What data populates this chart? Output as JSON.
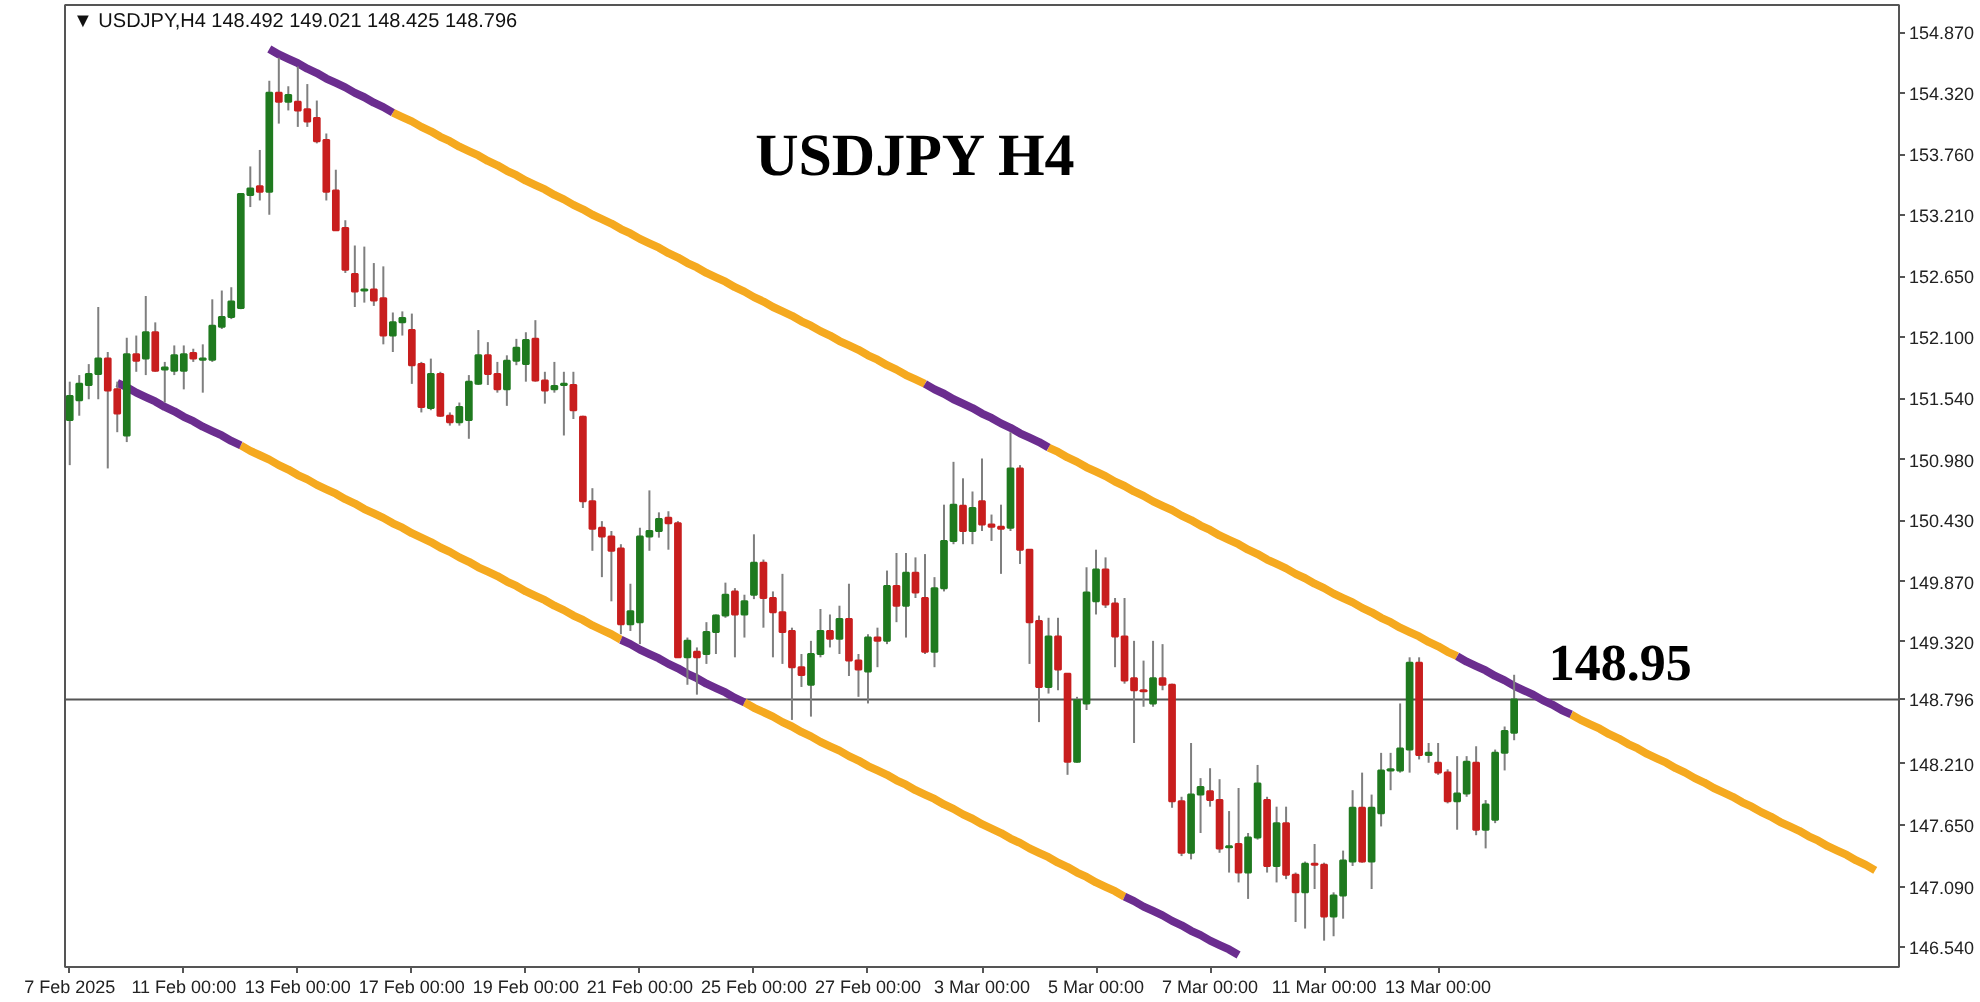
{
  "chart_data": {
    "type": "candlestick",
    "title": "USDJPY H4",
    "annotations": [
      "▼ USDJPY,H4  148.492 149.021 148.425 148.796",
      "148.95"
    ],
    "categories": [
      "7 Feb 2025",
      null,
      null,
      null,
      null,
      null,
      null,
      null,
      null,
      null,
      null,
      null,
      "11 Feb 00:00",
      null,
      null,
      null,
      null,
      null,
      null,
      null,
      null,
      null,
      null,
      null,
      "13 Feb 00:00",
      null,
      null,
      null,
      null,
      null,
      null,
      null,
      null,
      null,
      null,
      null,
      "17 Feb 00:00",
      null,
      null,
      null,
      null,
      null,
      null,
      null,
      null,
      null,
      null,
      null,
      "19 Feb 00:00",
      null,
      null,
      null,
      null,
      null,
      null,
      null,
      null,
      null,
      null,
      null,
      "21 Feb 00:00",
      null,
      null,
      null,
      null,
      null,
      null,
      null,
      null,
      null,
      null,
      null,
      "25 Feb 00:00",
      null,
      null,
      null,
      null,
      null,
      null,
      null,
      null,
      null,
      null,
      null,
      "27 Feb 00:00",
      null,
      null,
      null,
      null,
      null,
      null,
      null,
      null,
      null,
      null,
      null,
      "3 Mar 00:00",
      null,
      null,
      null,
      null,
      null,
      null,
      null,
      null,
      null,
      null,
      null,
      "5 Mar 00:00",
      null,
      null,
      null,
      null,
      null,
      null,
      null,
      null,
      null,
      null,
      null,
      "7 Mar 00:00",
      null,
      null,
      null,
      null,
      null,
      null,
      null,
      null,
      null,
      null,
      null,
      "11 Mar 00:00",
      null,
      null,
      null,
      null,
      null,
      null,
      null,
      null,
      null,
      null,
      null,
      "13 Mar 00:00",
      null,
      null,
      null,
      null,
      null,
      null,
      null,
      null,
      null,
      null,
      null,
      null,
      null,
      null,
      null,
      null,
      null,
      null,
      null,
      null,
      null,
      null,
      null,
      null,
      null,
      null,
      null,
      null,
      null,
      null,
      null,
      null,
      null,
      null,
      null,
      null,
      null,
      null,
      null,
      null,
      null,
      null,
      null,
      null,
      null,
      null,
      null,
      null
    ],
    "ohlc": [
      [
        151.34,
        151.69,
        150.93,
        151.56
      ],
      [
        151.52,
        151.75,
        151.38,
        151.67
      ],
      [
        151.66,
        151.85,
        151.53,
        151.76
      ],
      [
        151.76,
        152.37,
        151.53,
        151.9
      ],
      [
        151.9,
        151.96,
        150.9,
        151.61
      ],
      [
        151.62,
        151.69,
        151.23,
        151.4
      ],
      [
        151.2,
        152.09,
        151.14,
        151.94
      ],
      [
        151.94,
        152.11,
        151.78,
        151.88
      ],
      [
        151.9,
        152.47,
        151.75,
        152.14
      ],
      [
        152.14,
        152.23,
        151.78,
        151.79
      ],
      [
        151.8,
        151.87,
        151.5,
        151.82
      ],
      [
        151.79,
        152.02,
        151.75,
        151.93
      ],
      [
        151.79,
        152.02,
        151.62,
        151.94
      ],
      [
        151.95,
        151.99,
        151.87,
        151.9
      ],
      [
        151.89,
        152.03,
        151.59,
        151.9
      ],
      [
        151.89,
        152.44,
        151.87,
        152.2
      ],
      [
        152.19,
        152.52,
        152.17,
        152.28
      ],
      [
        152.28,
        152.55,
        152.26,
        152.42
      ],
      [
        152.36,
        153.4,
        152.35,
        153.4
      ],
      [
        153.39,
        153.65,
        153.28,
        153.45
      ],
      [
        153.47,
        153.8,
        153.34,
        153.42
      ],
      [
        153.42,
        154.43,
        153.21,
        154.32
      ],
      [
        154.32,
        154.64,
        154.04,
        154.24
      ],
      [
        154.24,
        154.38,
        154.16,
        154.3
      ],
      [
        154.24,
        154.56,
        154.01,
        154.16
      ],
      [
        154.17,
        154.4,
        154.01,
        154.06
      ],
      [
        154.09,
        154.25,
        153.86,
        153.88
      ],
      [
        153.89,
        153.95,
        153.34,
        153.42
      ],
      [
        153.43,
        153.62,
        153.07,
        153.07
      ],
      [
        153.09,
        153.16,
        152.68,
        152.71
      ],
      [
        152.67,
        152.93,
        152.37,
        152.51
      ],
      [
        152.52,
        152.92,
        152.41,
        152.53
      ],
      [
        152.53,
        152.77,
        152.38,
        152.43
      ],
      [
        152.45,
        152.74,
        152.03,
        152.11
      ],
      [
        152.11,
        152.32,
        151.96,
        152.23
      ],
      [
        152.23,
        152.33,
        152.11,
        152.27
      ],
      [
        152.16,
        152.31,
        151.67,
        151.84
      ],
      [
        151.85,
        151.87,
        151.41,
        151.46
      ],
      [
        151.45,
        151.9,
        151.43,
        151.76
      ],
      [
        151.76,
        151.78,
        151.37,
        151.38
      ],
      [
        151.38,
        151.41,
        151.29,
        151.32
      ],
      [
        151.32,
        151.5,
        151.29,
        151.46
      ],
      [
        151.34,
        151.75,
        151.17,
        151.69
      ],
      [
        151.67,
        152.16,
        151.66,
        151.93
      ],
      [
        151.93,
        152.05,
        151.66,
        151.76
      ],
      [
        151.76,
        151.87,
        151.59,
        151.62
      ],
      [
        151.62,
        151.93,
        151.47,
        151.88
      ],
      [
        151.88,
        152.08,
        151.84,
        152.0
      ],
      [
        151.85,
        152.14,
        151.69,
        152.07
      ],
      [
        152.08,
        152.25,
        151.69,
        151.7
      ],
      [
        151.7,
        151.78,
        151.49,
        151.61
      ],
      [
        151.62,
        151.87,
        151.59,
        151.65
      ],
      [
        151.66,
        151.78,
        151.2,
        151.67
      ],
      [
        151.66,
        151.78,
        151.35,
        151.43
      ],
      [
        151.37,
        151.38,
        150.54,
        150.6
      ],
      [
        150.6,
        150.72,
        150.15,
        150.35
      ],
      [
        150.36,
        150.42,
        149.91,
        150.28
      ],
      [
        150.28,
        150.33,
        149.69,
        150.15
      ],
      [
        150.17,
        150.21,
        149.39,
        149.48
      ],
      [
        149.48,
        149.85,
        149.42,
        149.6
      ],
      [
        149.5,
        150.36,
        149.3,
        150.28
      ],
      [
        150.28,
        150.7,
        150.15,
        150.33
      ],
      [
        150.33,
        150.5,
        150.27,
        150.44
      ],
      [
        150.45,
        150.51,
        150.16,
        150.4
      ],
      [
        150.4,
        150.42,
        149.18,
        149.18
      ],
      [
        149.18,
        149.36,
        148.93,
        149.33
      ],
      [
        149.23,
        149.27,
        148.84,
        149.18
      ],
      [
        149.21,
        149.5,
        149.12,
        149.41
      ],
      [
        149.41,
        149.57,
        149.21,
        149.56
      ],
      [
        149.56,
        149.86,
        149.54,
        149.75
      ],
      [
        149.78,
        149.81,
        149.18,
        149.57
      ],
      [
        149.57,
        149.75,
        149.36,
        149.69
      ],
      [
        149.75,
        150.3,
        149.71,
        150.04
      ],
      [
        150.04,
        150.07,
        149.45,
        149.72
      ],
      [
        149.72,
        149.78,
        149.18,
        149.59
      ],
      [
        149.59,
        149.94,
        149.12,
        149.41
      ],
      [
        149.42,
        149.45,
        148.61,
        149.09
      ],
      [
        149.09,
        149.21,
        148.91,
        149.02
      ],
      [
        148.93,
        149.33,
        148.64,
        149.21
      ],
      [
        149.21,
        149.62,
        149.18,
        149.42
      ],
      [
        149.42,
        149.57,
        149.27,
        149.35
      ],
      [
        149.35,
        149.65,
        149.21,
        149.53
      ],
      [
        149.53,
        149.85,
        149.01,
        149.15
      ],
      [
        149.15,
        149.21,
        148.82,
        149.07
      ],
      [
        149.05,
        149.39,
        148.76,
        149.36
      ],
      [
        149.36,
        149.45,
        149.09,
        149.33
      ],
      [
        149.33,
        149.97,
        149.3,
        149.83
      ],
      [
        149.83,
        150.13,
        149.5,
        149.65
      ],
      [
        149.65,
        150.13,
        149.36,
        149.95
      ],
      [
        149.95,
        150.09,
        149.72,
        149.77
      ],
      [
        149.72,
        150.12,
        149.21,
        149.23
      ],
      [
        149.23,
        149.91,
        149.09,
        149.81
      ],
      [
        149.81,
        150.57,
        149.78,
        150.24
      ],
      [
        150.24,
        150.96,
        150.21,
        150.57
      ],
      [
        150.56,
        150.81,
        150.21,
        150.33
      ],
      [
        150.33,
        150.69,
        150.21,
        150.54
      ],
      [
        150.6,
        150.99,
        150.33,
        150.39
      ],
      [
        150.39,
        150.48,
        150.24,
        150.37
      ],
      [
        150.37,
        150.57,
        149.94,
        150.35
      ],
      [
        150.36,
        151.23,
        150.33,
        150.9
      ],
      [
        150.9,
        150.93,
        150.03,
        150.16
      ],
      [
        150.16,
        150.16,
        149.12,
        149.5
      ],
      [
        149.51,
        149.56,
        148.59,
        148.91
      ],
      [
        148.91,
        149.54,
        148.85,
        149.37
      ],
      [
        149.37,
        149.54,
        148.88,
        149.07
      ],
      [
        149.03,
        149.03,
        148.11,
        148.23
      ],
      [
        148.23,
        148.82,
        148.22,
        148.79
      ],
      [
        148.76,
        150.0,
        148.7,
        149.77
      ],
      [
        149.69,
        150.16,
        149.57,
        149.98
      ],
      [
        149.98,
        150.09,
        149.63,
        149.66
      ],
      [
        149.67,
        149.72,
        149.09,
        149.37
      ],
      [
        149.37,
        149.72,
        148.94,
        148.97
      ],
      [
        148.99,
        149.33,
        148.4,
        148.88
      ],
      [
        148.88,
        149.15,
        148.73,
        148.87
      ],
      [
        148.76,
        149.33,
        148.73,
        148.99
      ],
      [
        148.99,
        149.3,
        148.88,
        148.93
      ],
      [
        148.93,
        148.94,
        147.81,
        147.87
      ],
      [
        147.87,
        147.91,
        147.37,
        147.4
      ],
      [
        147.4,
        148.4,
        147.34,
        147.93
      ],
      [
        147.93,
        148.08,
        147.58,
        148.0
      ],
      [
        147.96,
        148.17,
        147.82,
        147.88
      ],
      [
        147.88,
        148.07,
        147.4,
        147.44
      ],
      [
        147.45,
        147.78,
        147.22,
        147.46
      ],
      [
        147.48,
        147.99,
        147.13,
        147.22
      ],
      [
        147.22,
        147.58,
        146.98,
        147.54
      ],
      [
        147.54,
        148.2,
        147.52,
        148.03
      ],
      [
        147.88,
        147.91,
        147.22,
        147.28
      ],
      [
        147.28,
        147.82,
        147.13,
        147.67
      ],
      [
        147.67,
        147.82,
        147.16,
        147.2
      ],
      [
        147.2,
        147.22,
        146.77,
        147.04
      ],
      [
        147.04,
        147.32,
        146.71,
        147.3
      ],
      [
        147.3,
        147.48,
        147.07,
        147.29
      ],
      [
        147.29,
        147.31,
        146.6,
        146.82
      ],
      [
        146.82,
        147.04,
        146.64,
        147.01
      ],
      [
        147.01,
        147.42,
        146.8,
        147.33
      ],
      [
        147.32,
        147.97,
        147.28,
        147.81
      ],
      [
        147.81,
        148.13,
        147.31,
        147.32
      ],
      [
        147.32,
        147.93,
        147.07,
        147.81
      ],
      [
        147.76,
        148.31,
        147.64,
        148.15
      ],
      [
        148.15,
        148.31,
        147.97,
        148.16
      ],
      [
        148.15,
        148.76,
        148.13,
        148.35
      ],
      [
        148.34,
        149.18,
        148.13,
        149.13
      ],
      [
        149.13,
        149.18,
        148.25,
        148.29
      ],
      [
        148.29,
        148.4,
        148.22,
        148.31
      ],
      [
        148.22,
        148.4,
        148.11,
        148.13
      ],
      [
        148.13,
        148.16,
        147.85,
        147.87
      ],
      [
        147.87,
        148.28,
        147.61,
        147.94
      ],
      [
        147.94,
        148.28,
        147.91,
        148.23
      ],
      [
        148.22,
        148.37,
        147.56,
        147.61
      ],
      [
        147.61,
        147.88,
        147.44,
        147.84
      ],
      [
        147.7,
        148.34,
        147.67,
        148.31
      ],
      [
        148.31,
        148.55,
        148.15,
        148.51
      ],
      [
        148.492,
        149.021,
        148.425,
        148.796
      ],
      null,
      null,
      null,
      null,
      null,
      null,
      null,
      null,
      null,
      null,
      null,
      null,
      null,
      null,
      null,
      null,
      null,
      null,
      null,
      null,
      null,
      null,
      null,
      null,
      null,
      null,
      null,
      null,
      null,
      null,
      null,
      null,
      null,
      null,
      null,
      null,
      null,
      null,
      null,
      null
    ],
    "colors": [
      "#1f7a1f",
      "#1f7a1f",
      "#1f7a1f",
      "#1f7a1f",
      "#c81e1e",
      "#c81e1e",
      "#1f7a1f",
      "#c81e1e",
      "#1f7a1f",
      "#c81e1e",
      "#1f7a1f",
      "#1f7a1f",
      "#1f7a1f",
      "#c81e1e",
      "#1f7a1f",
      "#1f7a1f",
      "#1f7a1f",
      "#1f7a1f",
      "#1f7a1f",
      "#1f7a1f",
      "#c81e1e",
      "#1f7a1f",
      "#c81e1e",
      "#1f7a1f",
      "#c81e1e",
      "#c81e1e",
      "#c81e1e",
      "#c81e1e",
      "#c81e1e",
      "#c81e1e",
      "#c81e1e",
      "#1f7a1f",
      "#c81e1e",
      "#c81e1e",
      "#1f7a1f",
      "#1f7a1f",
      "#c81e1e",
      "#c81e1e",
      "#1f7a1f",
      "#c81e1e",
      "#c81e1e",
      "#1f7a1f",
      "#1f7a1f",
      "#1f7a1f",
      "#c81e1e",
      "#c81e1e",
      "#1f7a1f",
      "#1f7a1f",
      "#1f7a1f",
      "#c81e1e",
      "#c81e1e",
      "#1f7a1f",
      "#1f7a1f",
      "#c81e1e",
      "#c81e1e",
      "#c81e1e",
      "#c81e1e",
      "#c81e1e",
      "#c81e1e",
      "#1f7a1f",
      "#1f7a1f",
      "#1f7a1f",
      "#1f7a1f",
      "#c81e1e",
      "#c81e1e",
      "#1f7a1f",
      "#c81e1e",
      "#1f7a1f",
      "#1f7a1f",
      "#1f7a1f",
      "#c81e1e",
      "#1f7a1f",
      "#1f7a1f",
      "#c81e1e",
      "#c81e1e",
      "#c81e1e",
      "#c81e1e",
      "#c81e1e",
      "#1f7a1f",
      "#1f7a1f",
      "#c81e1e",
      "#1f7a1f",
      "#c81e1e",
      "#c81e1e",
      "#1f7a1f",
      "#c81e1e",
      "#1f7a1f",
      "#c81e1e",
      "#1f7a1f",
      "#c81e1e",
      "#c81e1e",
      "#1f7a1f",
      "#1f7a1f",
      "#1f7a1f",
      "#c81e1e",
      "#1f7a1f",
      "#c81e1e",
      "#c81e1e",
      "#c81e1e",
      "#1f7a1f",
      "#c81e1e",
      "#c81e1e",
      "#c81e1e",
      "#1f7a1f",
      "#c81e1e",
      "#c81e1e",
      "#1f7a1f",
      "#1f7a1f",
      "#1f7a1f",
      "#c81e1e",
      "#c81e1e",
      "#c81e1e",
      "#c81e1e",
      "#c81e1e",
      "#1f7a1f",
      "#c81e1e",
      "#c81e1e",
      "#c81e1e",
      "#1f7a1f",
      "#1f7a1f",
      "#c81e1e",
      "#c81e1e",
      "#1f7a1f",
      "#c81e1e",
      "#1f7a1f",
      "#1f7a1f",
      "#c81e1e",
      "#1f7a1f",
      "#c81e1e",
      "#c81e1e",
      "#1f7a1f",
      "#c81e1e",
      "#c81e1e",
      "#1f7a1f",
      "#1f7a1f",
      "#1f7a1f",
      "#c81e1e",
      "#1f7a1f",
      "#1f7a1f",
      "#1f7a1f",
      "#1f7a1f",
      "#1f7a1f",
      "#c81e1e",
      "#1f7a1f",
      "#c81e1e",
      "#c81e1e",
      "#1f7a1f",
      "#1f7a1f",
      "#c81e1e",
      "#1f7a1f",
      "#1f7a1f",
      "#1f7a1f",
      "#1f7a1f",
      null,
      null,
      null,
      null,
      null,
      null,
      null,
      null,
      null,
      null,
      null,
      null,
      null,
      null,
      null,
      null,
      null,
      null,
      null,
      null,
      null,
      null,
      null,
      null,
      null,
      null,
      null,
      null,
      null,
      null,
      null,
      null,
      null,
      null,
      null,
      null,
      null,
      null,
      null,
      null
    ],
    "ylim": [
      146.36,
      155.12
    ],
    "yticks": [
      {
        "value": 154.87,
        "label": "154.870"
      },
      {
        "value": 154.32,
        "label": "154.320"
      },
      {
        "value": 153.76,
        "label": "153.760"
      },
      {
        "value": 153.21,
        "label": "153.210"
      },
      {
        "value": 152.65,
        "label": "152.650"
      },
      {
        "value": 152.1,
        "label": "152.100"
      },
      {
        "value": 151.54,
        "label": "151.540"
      },
      {
        "value": 150.98,
        "label": "150.980"
      },
      {
        "value": 150.43,
        "label": "150.430"
      },
      {
        "value": 149.87,
        "label": "149.870"
      },
      {
        "value": 149.32,
        "label": "149.320"
      },
      {
        "value": 148.21,
        "label": "148.210"
      },
      {
        "value": 147.65,
        "label": "147.650"
      },
      {
        "value": 147.09,
        "label": "147.090"
      },
      {
        "value": 146.54,
        "label": "146.540"
      }
    ],
    "series": [
      {
        "type": "line",
        "color": "#f5a91f",
        "values": [
          null,
          null,
          null,
          null,
          null,
          null,
          null,
          null,
          null,
          null,
          null,
          null,
          null,
          null,
          null,
          null,
          null,
          null,
          null,
          null,
          null,
          null,
          null,
          null,
          null,
          null,
          null,
          null,
          null,
          null,
          null,
          null,
          null,
          null,
          154.14,
          154.1,
          154.06,
          154.01,
          153.97,
          153.92,
          153.88,
          153.83,
          153.79,
          153.75,
          153.7,
          153.66,
          153.61,
          153.57,
          153.52,
          153.48,
          153.44,
          153.39,
          153.35,
          153.3,
          153.26,
          153.21,
          153.17,
          153.13,
          153.08,
          153.04,
          152.99,
          152.95,
          152.91,
          152.86,
          152.82,
          152.77,
          152.73,
          152.68,
          152.64,
          152.6,
          152.55,
          152.51,
          152.46,
          152.42,
          152.37,
          152.33,
          152.29,
          152.24,
          152.2,
          152.15,
          152.11,
          152.06,
          152.02,
          151.98,
          151.93,
          151.89,
          151.84,
          151.8,
          151.75,
          151.71,
          151.67,
          null,
          null,
          null,
          null,
          null,
          null,
          null,
          null,
          null,
          null,
          null,
          null,
          151.09,
          151.05,
          151.0,
          150.96,
          150.91,
          150.87,
          150.83,
          150.78,
          150.74,
          150.69,
          150.65,
          150.6,
          150.56,
          150.52,
          150.47,
          150.43,
          150.38,
          150.34,
          150.29,
          150.25,
          150.21,
          150.16,
          150.12,
          150.07,
          150.03,
          149.99,
          149.94,
          149.9,
          149.85,
          149.81,
          149.76,
          149.72,
          149.68,
          149.63,
          149.59,
          149.54,
          149.5,
          149.45,
          149.41,
          149.37,
          149.32,
          149.28,
          149.23,
          149.19,
          null,
          null,
          null,
          null,
          null,
          null,
          null,
          null,
          null,
          null,
          null,
          148.66,
          148.61,
          148.57,
          148.53,
          148.48,
          148.44,
          148.39,
          148.35,
          148.3,
          148.26,
          148.22,
          148.17,
          148.13,
          148.08,
          148.04,
          147.99,
          147.95,
          147.91,
          147.86,
          147.82,
          147.77,
          147.73,
          147.68,
          147.64,
          147.6,
          147.55,
          147.51,
          147.46,
          147.42,
          147.38,
          147.33,
          147.29,
          147.24,
          null,
          null
        ]
      },
      {
        "type": "line",
        "color": "#f5a91f",
        "values": [
          null,
          null,
          null,
          null,
          null,
          null,
          null,
          null,
          null,
          null,
          null,
          null,
          null,
          null,
          null,
          null,
          null,
          null,
          151.11,
          151.06,
          151.02,
          150.98,
          150.93,
          150.89,
          150.84,
          150.8,
          150.75,
          150.71,
          150.67,
          150.62,
          150.58,
          150.53,
          150.49,
          150.45,
          150.4,
          150.36,
          150.31,
          150.27,
          150.23,
          150.18,
          150.14,
          150.09,
          150.05,
          150.0,
          149.96,
          149.92,
          149.87,
          149.83,
          149.78,
          149.74,
          149.7,
          149.65,
          149.61,
          149.56,
          149.52,
          149.47,
          149.43,
          149.39,
          149.34,
          null,
          null,
          null,
          null,
          null,
          null,
          null,
          null,
          null,
          null,
          null,
          null,
          148.77,
          148.72,
          148.68,
          148.64,
          148.59,
          148.55,
          148.5,
          148.46,
          148.41,
          148.37,
          148.33,
          148.28,
          148.24,
          148.19,
          148.15,
          148.11,
          148.06,
          148.02,
          147.97,
          147.93,
          147.89,
          147.84,
          147.8,
          147.75,
          147.71,
          147.66,
          147.62,
          147.58,
          147.53,
          147.49,
          147.44,
          147.4,
          147.36,
          147.31,
          147.27,
          147.22,
          147.18,
          147.13,
          147.09,
          147.05,
          147.0,
          null,
          null,
          null,
          null,
          null,
          null,
          null,
          null,
          null,
          null,
          null,
          null,
          null,
          null,
          null,
          null,
          null,
          null,
          null,
          null,
          null,
          null,
          null,
          null,
          null,
          null,
          null,
          null,
          null,
          null,
          null,
          null,
          null,
          null,
          null,
          null,
          null,
          null,
          null,
          null,
          null,
          null,
          null,
          null,
          null,
          null,
          null,
          null,
          null,
          null,
          null,
          null,
          null,
          null,
          null,
          null,
          null,
          null,
          null,
          null,
          null,
          null,
          null,
          null,
          null,
          null,
          null,
          null,
          null,
          null,
          null,
          null,
          null,
          null,
          null,
          null,
          null,
          null,
          null,
          null,
          null
        ]
      },
      {
        "type": "line",
        "color": "#6b2d8f",
        "values": [
          null,
          null,
          null,
          null,
          null,
          151.68,
          151.64,
          151.59,
          151.55,
          151.51,
          151.46,
          151.42,
          151.37,
          151.33,
          151.28,
          151.24,
          151.2,
          151.15,
          151.11,
          null,
          null,
          154.72,
          154.67,
          154.63,
          154.59,
          154.54,
          154.5,
          154.45,
          154.41,
          154.37,
          154.32,
          154.28,
          154.23,
          154.19,
          154.14,
          null,
          null,
          null,
          null,
          null,
          null,
          null,
          null,
          null,
          null,
          null,
          null,
          null,
          null,
          null,
          null,
          null,
          null,
          null,
          null,
          null,
          null,
          null,
          149.34,
          149.3,
          149.25,
          149.21,
          149.17,
          149.12,
          149.08,
          149.03,
          148.99,
          148.94,
          148.9,
          148.86,
          148.81,
          148.77,
          null,
          null,
          null,
          null,
          null,
          null,
          null,
          null,
          null,
          null,
          null,
          null,
          null,
          null,
          null,
          null,
          null,
          null,
          151.67,
          151.62,
          151.58,
          151.53,
          151.49,
          151.45,
          151.4,
          151.36,
          151.31,
          151.27,
          151.22,
          151.18,
          151.14,
          151.09,
          null,
          null,
          null,
          null,
          null,
          null,
          null,
          147.0,
          146.96,
          146.91,
          146.87,
          146.83,
          146.78,
          146.74,
          146.69,
          146.65,
          146.6,
          146.56,
          146.52,
          146.47,
          null,
          null,
          null,
          null,
          null,
          null,
          null,
          null,
          null,
          null,
          null,
          null,
          null,
          null,
          null,
          null,
          null,
          null,
          null,
          null,
          null,
          null,
          149.19,
          149.14,
          149.1,
          149.06,
          149.01,
          148.97,
          148.92,
          148.88,
          148.84,
          148.79,
          148.75,
          148.7,
          148.66,
          null,
          null,
          null,
          null,
          null,
          null,
          null,
          null,
          null,
          null,
          null,
          null,
          null,
          null,
          null,
          null,
          null,
          null,
          null,
          null,
          null,
          null,
          null,
          null,
          null,
          null,
          null,
          null,
          null,
          null,
          null,
          null,
          null,
          null
        ]
      }
    ],
    "ref_lines": [
      {
        "axis": "y",
        "value": 148.796,
        "label": "148.796",
        "color": "#555555"
      }
    ]
  }
}
